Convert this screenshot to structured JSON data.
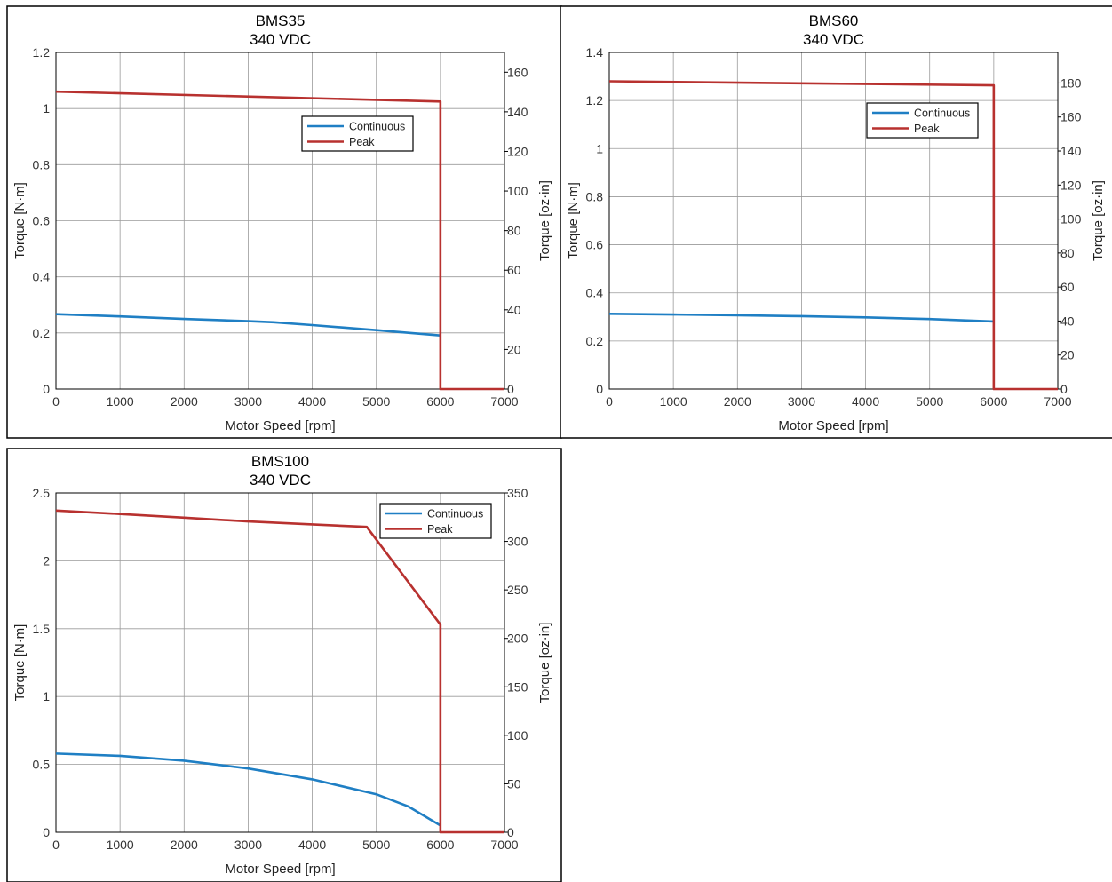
{
  "colors": {
    "continuous": "#1f7fc4",
    "peak": "#b8312f"
  },
  "chart_data": [
    {
      "type": "line",
      "title": "BMS35",
      "subtitle": "340 VDC",
      "xlabel": "Motor Speed [rpm]",
      "ylabel": "Torque [N·m]",
      "y2label": "Torque [oz·in]",
      "xlim": [
        0,
        7000
      ],
      "xticks": [
        0,
        1000,
        2000,
        3000,
        4000,
        5000,
        6000,
        7000
      ],
      "ylim": [
        0,
        1.2
      ],
      "yticks": [
        0,
        0.2,
        0.4,
        0.6,
        0.8,
        1,
        1.2
      ],
      "ytick_labels": [
        "0",
        "0.2",
        "0.4",
        "0.6",
        "0.8",
        "1",
        "1.2"
      ],
      "y2lim": [
        0,
        170
      ],
      "y2ticks": [
        0,
        20,
        40,
        60,
        80,
        100,
        120,
        140,
        160
      ],
      "grid": true,
      "legend_position": "upper-center-right",
      "series": [
        {
          "name": "Continuous",
          "color": "#1f7fc4",
          "x": [
            0,
            1000,
            2000,
            3000,
            3400,
            4000,
            5000,
            6000
          ],
          "y": [
            0.267,
            0.259,
            0.25,
            0.242,
            0.238,
            0.228,
            0.21,
            0.191
          ]
        },
        {
          "name": "Peak",
          "color": "#b8312f",
          "x": [
            0,
            6000,
            6000,
            7000
          ],
          "y": [
            1.06,
            1.025,
            0,
            0
          ]
        }
      ]
    },
    {
      "type": "line",
      "title": "BMS60",
      "subtitle": "340 VDC",
      "xlabel": "Motor Speed [rpm]",
      "ylabel": "Torque [N·m]",
      "y2label": "Torque [oz·in]",
      "xlim": [
        0,
        7000
      ],
      "xticks": [
        0,
        1000,
        2000,
        3000,
        4000,
        5000,
        6000,
        7000
      ],
      "ylim": [
        0,
        1.4
      ],
      "yticks": [
        0,
        0.2,
        0.4,
        0.6,
        0.8,
        1,
        1.2,
        1.4
      ],
      "ytick_labels": [
        "0",
        "0.2",
        "0.4",
        "0.6",
        "0.8",
        "1",
        "1.2",
        "1.4"
      ],
      "y2lim": [
        0,
        198
      ],
      "y2ticks": [
        0,
        20,
        40,
        60,
        80,
        100,
        120,
        140,
        160,
        180
      ],
      "grid": true,
      "legend_position": "upper-center-right",
      "series": [
        {
          "name": "Continuous",
          "color": "#1f7fc4",
          "x": [
            0,
            1000,
            2000,
            3000,
            4000,
            5000,
            6000
          ],
          "y": [
            0.313,
            0.31,
            0.307,
            0.303,
            0.298,
            0.291,
            0.281
          ]
        },
        {
          "name": "Peak",
          "color": "#b8312f",
          "x": [
            0,
            6000,
            6000,
            7000
          ],
          "y": [
            1.28,
            1.263,
            0,
            0
          ]
        }
      ]
    },
    {
      "type": "line",
      "title": "BMS100",
      "subtitle": "340 VDC",
      "xlabel": "Motor Speed [rpm]",
      "ylabel": "Torque [N·m]",
      "y2label": "Torque [oz·in]",
      "xlim": [
        0,
        7000
      ],
      "xticks": [
        0,
        1000,
        2000,
        3000,
        4000,
        5000,
        6000,
        7000
      ],
      "ylim": [
        0,
        2.5
      ],
      "yticks": [
        0,
        0.5,
        1,
        1.5,
        2,
        2.5
      ],
      "ytick_labels": [
        "0",
        "0.5",
        "1",
        "1.5",
        "2",
        "2.5"
      ],
      "y2lim": [
        0,
        350
      ],
      "y2ticks": [
        0,
        50,
        100,
        150,
        200,
        250,
        300,
        350
      ],
      "grid": true,
      "legend_position": "top-right",
      "series": [
        {
          "name": "Continuous",
          "color": "#1f7fc4",
          "x": [
            0,
            1000,
            2000,
            3000,
            4000,
            5000,
            5500,
            6000
          ],
          "y": [
            0.58,
            0.563,
            0.527,
            0.47,
            0.39,
            0.28,
            0.19,
            0.05
          ]
        },
        {
          "name": "Peak",
          "color": "#b8312f",
          "x": [
            0,
            1000,
            2000,
            3000,
            4000,
            4850,
            6000,
            6000,
            7000
          ],
          "y": [
            2.37,
            2.345,
            2.318,
            2.29,
            2.268,
            2.25,
            1.53,
            0,
            0
          ]
        }
      ]
    }
  ]
}
